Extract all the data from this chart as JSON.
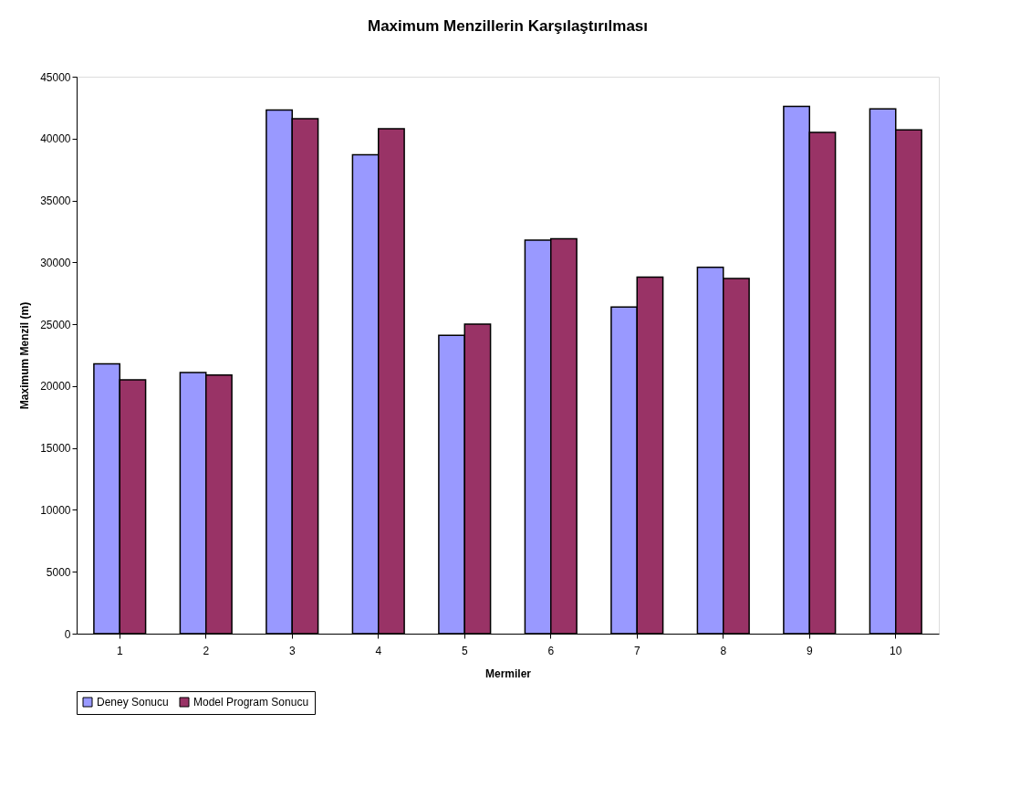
{
  "chart_data": {
    "type": "bar",
    "title": "Maximum Menzillerin Karşılaştırılması",
    "xlabel": "Mermiler",
    "ylabel": "Maximum Menzil (m)",
    "categories": [
      "1",
      "2",
      "3",
      "4",
      "5",
      "6",
      "7",
      "8",
      "9",
      "10"
    ],
    "series": [
      {
        "name": "Deney Sonucu",
        "color": "#9999ff",
        "values": [
          21800,
          21100,
          42300,
          38700,
          24100,
          31800,
          26400,
          29600,
          42600,
          42400
        ]
      },
      {
        "name": "Model Program Sonucu",
        "color": "#993366",
        "values": [
          20500,
          20900,
          41600,
          40800,
          25000,
          31900,
          28800,
          28700,
          40500,
          40700
        ]
      }
    ],
    "ylim": [
      0,
      45000
    ],
    "yticks": [
      0,
      5000,
      10000,
      15000,
      20000,
      25000,
      30000,
      35000,
      40000,
      45000
    ],
    "grid": false,
    "legend": "bottom"
  }
}
